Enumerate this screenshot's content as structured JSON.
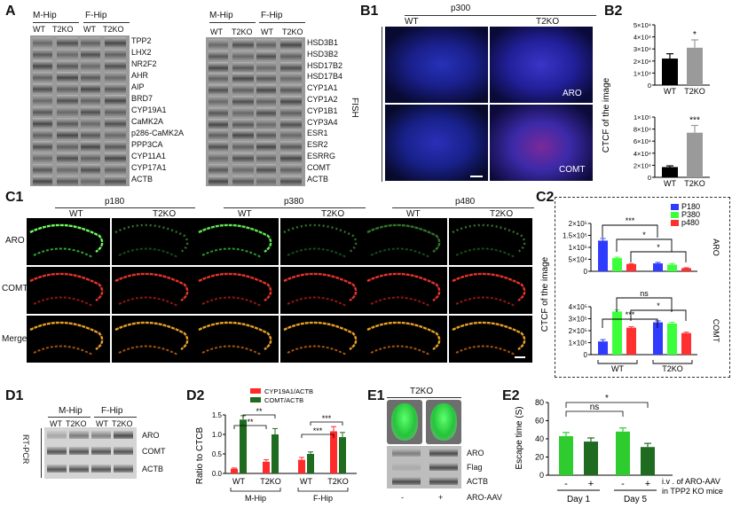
{
  "panelA": {
    "label": "A",
    "groups": [
      "M-Hip",
      "F-Hip",
      "M-Hip",
      "F-Hip"
    ],
    "lanes": [
      "WT",
      "T2KO",
      "WT",
      "T2KO",
      "WT",
      "T2KO",
      "WT",
      "T2KO"
    ],
    "left_genes": [
      "TPP2",
      "LHX2",
      "NR2F2",
      "AHR",
      "AIP",
      "BRD7",
      "CYP19A1",
      "CaMK2A",
      "p286-CaMK2A",
      "PPP3CA",
      "CYP11A1",
      "CYP17A1",
      "ACTB"
    ],
    "right_genes": [
      "HSD3B1",
      "HSD3B2",
      "HSD17B2",
      "HSD17B4",
      "CYP1A1",
      "CYP1A2",
      "CYP1B1",
      "CYP3A4",
      "ESR1",
      "ESR2",
      "ESRRG",
      "COMT",
      "ACTB"
    ]
  },
  "panelB1": {
    "label": "B1",
    "age": "p300",
    "wt": "WT",
    "ko": "T2KO",
    "side": "FISH",
    "row1": "ARO",
    "row2": "COMT"
  },
  "panelB2": {
    "label": "B2",
    "ylabel": "CTCF of the image",
    "top": {
      "ticks": [
        "5×10⁴",
        "4×10⁴",
        "3×10⁴",
        "2×10⁴",
        "1×10⁴",
        "0"
      ],
      "sig": "*"
    },
    "bottom": {
      "ticks": [
        "1×10⁵",
        "8×10⁴",
        "6×10⁴",
        "4×10⁴",
        "2×10⁴",
        "0"
      ],
      "sig": "***"
    },
    "xcats": [
      "WT",
      "T2KO"
    ]
  },
  "panelC1": {
    "label": "C1",
    "ages": [
      "p180",
      "p380",
      "p480"
    ],
    "wt": "WT",
    "ko": "T2KO",
    "rows": [
      "ARO",
      "COMT",
      "Merge"
    ]
  },
  "panelC2": {
    "label": "C2",
    "ylabel": "CTCF of the image",
    "legend": [
      "P180",
      "P380",
      "p480"
    ],
    "top_ticks": [
      "2×10⁵",
      "1.5×10⁵",
      "1×10⁵",
      "5×10⁴",
      "0"
    ],
    "bottom_ticks": [
      "4×10⁵",
      "3×10⁵",
      "2×10⁵",
      "1×10⁵",
      "0"
    ],
    "top_side": "ARO",
    "bottom_side": "COMT",
    "xcats": [
      "WT",
      "T2KO"
    ],
    "sig_top": [
      "***",
      "*",
      "*"
    ],
    "sig_bottom": [
      "ns",
      "*",
      "***"
    ]
  },
  "panelD1": {
    "label": "D1",
    "groups": [
      "M-Hip",
      "F-Hip"
    ],
    "lanes": [
      "WT",
      "T2KO",
      "WT",
      "T2KO"
    ],
    "side": "RT-PCR",
    "genes": [
      "ARO",
      "COMT",
      "ACTB"
    ]
  },
  "panelD2": {
    "label": "D2",
    "ylabel": "Ratio to CTCB",
    "legend": [
      "CYP19A1/ACTB",
      "COMT/ACTB"
    ],
    "ticks": [
      "1.5",
      "1.0",
      "0.5",
      "0.0"
    ],
    "xcats": [
      "WT",
      "T2KO",
      "WT",
      "T2KO"
    ],
    "groups": [
      "M-Hip",
      "F-Hip"
    ],
    "sig": [
      "**",
      "**",
      "***",
      "***"
    ]
  },
  "panelE1": {
    "label": "E1",
    "title": "T2KO",
    "genes": [
      "ARO",
      "Flag",
      "ACTB"
    ],
    "xsign": [
      "-",
      "+"
    ],
    "xlabel": "ARO-AAV"
  },
  "panelE2": {
    "label": "E2",
    "ylabel": "Escape time (S)",
    "ticks": [
      "80",
      "60",
      "40",
      "20",
      "0"
    ],
    "signs": [
      "-",
      "+",
      "-",
      "+"
    ],
    "days": [
      "Day 1",
      "Day 5"
    ],
    "note1": "i.v . of ARO-AAV",
    "note2": "in TPP2  KO mice",
    "sig": [
      "ns",
      "*"
    ]
  },
  "chart_data": [
    {
      "type": "bar",
      "panel": "B2 top",
      "categories": [
        "WT",
        "T2KO"
      ],
      "values": [
        22000,
        31000
      ],
      "ylim": [
        0,
        50000
      ],
      "ylabel": "CTCF of the image"
    },
    {
      "type": "bar",
      "panel": "B2 bottom",
      "categories": [
        "WT",
        "T2KO"
      ],
      "values": [
        17000,
        74000
      ],
      "ylim": [
        0,
        100000
      ],
      "ylabel": "CTCF of the image"
    },
    {
      "type": "bar",
      "panel": "C2 ARO",
      "categories": [
        "WT",
        "T2KO"
      ],
      "series": [
        {
          "name": "P180",
          "values": [
            128000,
            33000
          ]
        },
        {
          "name": "P380",
          "values": [
            55000,
            28000
          ]
        },
        {
          "name": "p480",
          "values": [
            30000,
            13000
          ]
        }
      ],
      "ylim": [
        0,
        200000
      ]
    },
    {
      "type": "bar",
      "panel": "C2 COMT",
      "categories": [
        "WT",
        "T2KO"
      ],
      "series": [
        {
          "name": "P180",
          "values": [
            110000,
            270000
          ]
        },
        {
          "name": "P380",
          "values": [
            360000,
            260000
          ]
        },
        {
          "name": "p480",
          "values": [
            225000,
            180000
          ]
        }
      ],
      "ylim": [
        0,
        400000
      ]
    },
    {
      "type": "bar",
      "panel": "D2",
      "categories": [
        "M-Hip WT",
        "M-Hip T2KO",
        "F-Hip WT",
        "F-Hip T2KO"
      ],
      "series": [
        {
          "name": "CYP19A1/ACTB",
          "values": [
            0.12,
            0.3,
            0.35,
            1.08
          ]
        },
        {
          "name": "COMT/ACTB",
          "values": [
            1.38,
            1.0,
            0.5,
            0.93
          ]
        }
      ],
      "ylim": [
        0,
        1.5
      ],
      "ylabel": "Ratio to CTCB"
    },
    {
      "type": "bar",
      "panel": "E2",
      "categories": [
        "Day 1 -",
        "Day 1 +",
        "Day 5 -",
        "Day 5 +"
      ],
      "values": [
        43,
        37,
        48,
        31
      ],
      "ylim": [
        0,
        80
      ],
      "ylabel": "Escape time (S)"
    }
  ]
}
